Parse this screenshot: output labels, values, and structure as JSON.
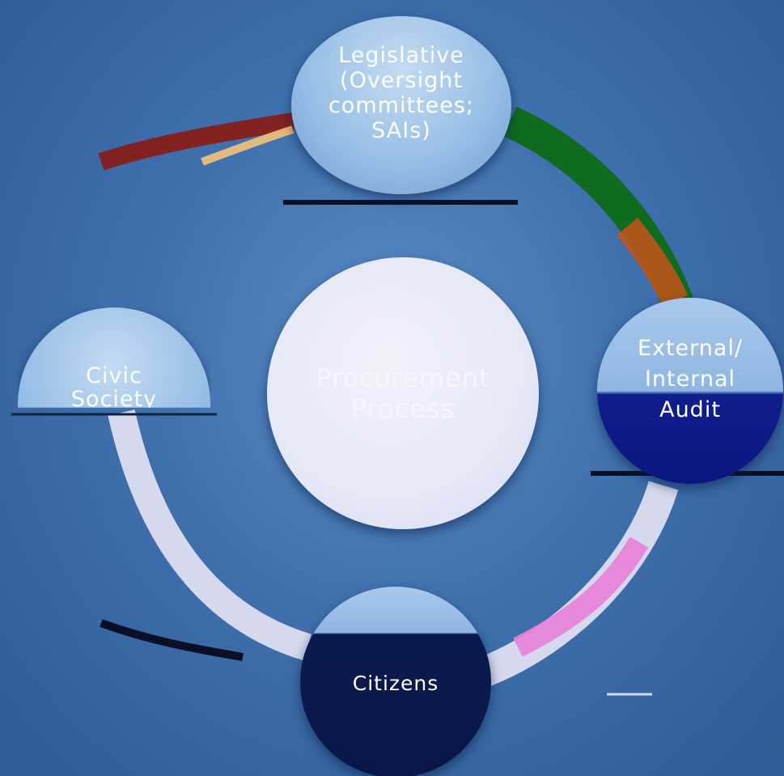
{
  "diagram": {
    "nodes": {
      "legislative": {
        "label": "Legislative\n(Oversight\ncommittees;\nSAIs)"
      },
      "civic_society": {
        "label": "Civic\nSociety"
      },
      "procurement_process": {
        "label": "Procurement\nProcess"
      },
      "external_internal_audit": {
        "label": "External/\nInternal\nAudit"
      },
      "citizens": {
        "label": "Citizens"
      }
    },
    "colors": {
      "background": "#3f70ad",
      "node_fill": "#98bfe6",
      "center_fill": "#e6e8f6",
      "audit_dark": "#0c1680",
      "citizens_dark": "#0a1647",
      "arc_green": "#0f6b1e",
      "arc_pink": "#e87fd8",
      "arc_light": "#d6d9ee"
    }
  }
}
